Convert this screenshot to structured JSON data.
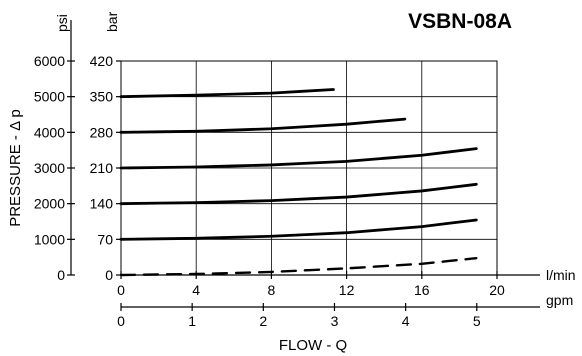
{
  "chart_data": {
    "type": "line",
    "title": "VSBN-08A",
    "ylabel": "PRESSURE - Δ p",
    "xlabel": "FLOW - Q",
    "x_unit_primary": "l/min",
    "x_unit_secondary": "gpm",
    "y_unit_bar": "bar",
    "y_unit_psi": "psi",
    "xlim": [
      0,
      20
    ],
    "ylim_bar": [
      0,
      420
    ],
    "x_ticks_lmin": [
      "0",
      "4",
      "8",
      "12",
      "16",
      "20"
    ],
    "x_ticks_gpm": [
      "0",
      "1",
      "2",
      "3",
      "4",
      "5"
    ],
    "y_ticks_bar": [
      "0",
      "70",
      "140",
      "210",
      "280",
      "350",
      "420"
    ],
    "y_ticks_psi": [
      "0",
      "1000",
      "2000",
      "3000",
      "4000",
      "5000",
      "6000"
    ],
    "grid": true,
    "series": [
      {
        "style": "solid",
        "x": [
          0,
          4,
          8,
          11.3
        ],
        "y": [
          350,
          353,
          357,
          364
        ]
      },
      {
        "style": "solid",
        "x": [
          0,
          4,
          8,
          12,
          15.1
        ],
        "y": [
          280,
          282,
          287,
          296,
          306
        ]
      },
      {
        "style": "solid",
        "x": [
          0,
          4,
          8,
          12,
          16,
          18.9
        ],
        "y": [
          210,
          212,
          216,
          223,
          235,
          248
        ]
      },
      {
        "style": "solid",
        "x": [
          0,
          4,
          8,
          12,
          16,
          18.9
        ],
        "y": [
          140,
          142,
          146,
          153,
          165,
          178
        ]
      },
      {
        "style": "solid",
        "x": [
          0,
          4,
          8,
          12,
          16,
          18.9
        ],
        "y": [
          70,
          72,
          76,
          83,
          95,
          108
        ]
      },
      {
        "style": "dashed",
        "x": [
          0,
          4,
          8,
          12,
          16,
          18.9
        ],
        "y": [
          0,
          2,
          6,
          13,
          22,
          33
        ]
      }
    ]
  }
}
